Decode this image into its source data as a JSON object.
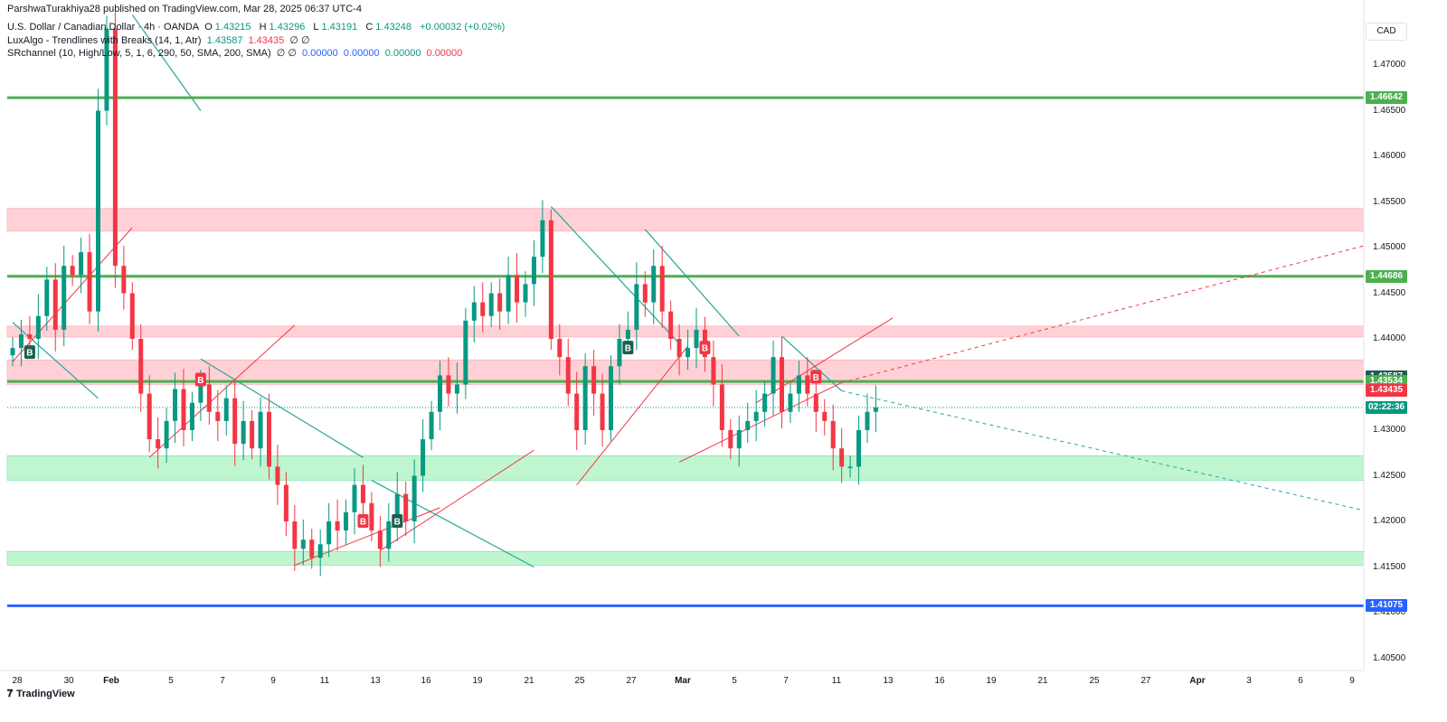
{
  "publisher": "ParshwaTurakhiya28 published on TradingView.com, Mar 28, 2025 06:37 UTC-4",
  "legend": {
    "symbol": "U.S. Dollar / Canadian Dollar · 4h · OANDA",
    "open_label": "O",
    "open": "1.43215",
    "high_label": "H",
    "high": "1.43296",
    "low_label": "L",
    "low": "1.43191",
    "close_label": "C",
    "close": "1.43248",
    "change": "+0.00032 (+0.02%)",
    "indicator1_name": "LuxAlgo - Trendlines with Breaks (14, 1, Atr)",
    "indicator1_v1": "1.43587",
    "indicator1_v2": "1.43435",
    "indicator1_rest": "∅  ∅",
    "indicator2_name": "SRchannel (10, High/Low, 5, 1, 6, 290, 50, SMA, 200, SMA)",
    "indicator2_na": "∅  ∅",
    "indicator2_v1": "0.00000",
    "indicator2_v2": "0.00000",
    "indicator2_v3": "0.00000",
    "indicator2_v4": "0.00000"
  },
  "currency": "CAD",
  "brand": "TradingView",
  "brand_icon": "tradingview-logo-icon",
  "colors": {
    "up": "#089981",
    "down": "#f23645",
    "level": "#4caf50",
    "support_line": "#2962ff",
    "resistance_zone": "#ffcdd2",
    "support_zone": "#b9f6ca",
    "trend_down": "#26a69a",
    "trend_up": "#f23645"
  },
  "chart_data": {
    "type": "candlestick",
    "y_ticks": [
      "1.47000",
      "1.46500",
      "1.46000",
      "1.45500",
      "1.45000",
      "1.44500",
      "1.44000",
      "1.43500",
      "1.43000",
      "1.42500",
      "1.42000",
      "1.41500",
      "1.41000",
      "1.40500"
    ],
    "x_ticks": [
      "28",
      "30",
      "Feb",
      "5",
      "7",
      "9",
      "11",
      "13",
      "16",
      "19",
      "21",
      "25",
      "27",
      "Mar",
      "5",
      "7",
      "11",
      "13",
      "16",
      "19",
      "21",
      "25",
      "27",
      "Apr",
      "3",
      "6",
      "9"
    ],
    "price_tags": [
      {
        "label": "1.46642",
        "value": 1.46642,
        "color": "#4caf50"
      },
      {
        "label": "1.44686",
        "value": 1.44686,
        "color": "#4caf50"
      },
      {
        "label": "1.43587",
        "value": 1.43587,
        "color": "#1b5e4f"
      },
      {
        "label": "1.43534",
        "value": 1.43534,
        "color": "#4caf50"
      },
      {
        "label": "1.43435",
        "value": 1.43435,
        "color": "#f23645"
      },
      {
        "label": "02:22:36",
        "value": 1.43248,
        "color": "#089981"
      },
      {
        "label": "1.41075",
        "value": 1.41075,
        "color": "#2962ff"
      }
    ],
    "levels": [
      1.46642,
      1.44686,
      1.43534
    ],
    "support_line": 1.41075,
    "last_price": 1.43248,
    "zones": [
      {
        "kind": "resistance",
        "from": 1.4518,
        "to": 1.4543
      },
      {
        "kind": "resistance",
        "from": 1.4402,
        "to": 1.4414
      },
      {
        "kind": "resistance",
        "from": 1.435,
        "to": 1.4377
      },
      {
        "kind": "support",
        "from": 1.4245,
        "to": 1.4272
      },
      {
        "kind": "support",
        "from": 1.4152,
        "to": 1.4167
      }
    ],
    "trend_down": [
      [
        1.4418,
        1.4335,
        0,
        10
      ],
      [
        1.4755,
        1.465,
        14,
        22
      ],
      [
        1.4378,
        1.427,
        22,
        41
      ],
      [
        1.4245,
        1.415,
        42,
        61
      ],
      [
        1.4545,
        1.4395,
        63,
        78
      ],
      [
        1.452,
        1.4403,
        74,
        85
      ],
      [
        1.4403,
        1.4343,
        90,
        97
      ]
    ],
    "trend_up": [
      [
        1.4375,
        1.4522,
        0,
        14
      ],
      [
        1.427,
        1.4415,
        16,
        33
      ],
      [
        1.4152,
        1.4215,
        33,
        50
      ],
      [
        1.4168,
        1.4278,
        43,
        61
      ],
      [
        1.424,
        1.4392,
        66,
        79
      ],
      [
        1.4265,
        1.4352,
        78,
        97
      ],
      [
        1.433,
        1.4423,
        87,
        103
      ]
    ],
    "dashed_up": [
      1.4352,
      1.4502,
      97,
      117
    ],
    "dashed_down": [
      1.4343,
      1.4212,
      97,
      117
    ],
    "break_labels": [
      {
        "text": "B",
        "kind": "bull",
        "i": 2,
        "price": 1.4385
      },
      {
        "text": "B",
        "kind": "bear",
        "i": 22,
        "price": 1.4355
      },
      {
        "text": "B",
        "kind": "bear",
        "i": 41,
        "price": 1.42
      },
      {
        "text": "B",
        "kind": "bull",
        "i": 45,
        "price": 1.42
      },
      {
        "text": "B",
        "kind": "bull",
        "i": 72,
        "price": 1.439
      },
      {
        "text": "B",
        "kind": "bear",
        "i": 81,
        "price": 1.439
      },
      {
        "text": "B",
        "kind": "bear",
        "i": 94,
        "price": 1.4358
      }
    ],
    "closes": [
      1.439,
      1.4405,
      1.44,
      1.4425,
      1.4465,
      1.441,
      1.448,
      1.447,
      1.4495,
      1.443,
      1.465,
      1.474,
      1.448,
      1.445,
      1.44,
      1.434,
      1.429,
      1.428,
      1.431,
      1.4345,
      1.43,
      1.433,
      1.435,
      1.432,
      1.431,
      1.4335,
      1.4285,
      1.431,
      1.428,
      1.432,
      1.426,
      1.424,
      1.42,
      1.417,
      1.418,
      1.416,
      1.4175,
      1.42,
      1.419,
      1.421,
      1.424,
      1.422,
      1.419,
      1.417,
      1.42,
      1.423,
      1.42,
      1.425,
      1.429,
      1.432,
      1.436,
      1.434,
      1.435,
      1.442,
      1.444,
      1.4425,
      1.445,
      1.443,
      1.447,
      1.444,
      1.446,
      1.449,
      1.453,
      1.44,
      1.438,
      1.434,
      1.43,
      1.437,
      1.434,
      1.43,
      1.437,
      1.44,
      1.441,
      1.446,
      1.444,
      1.448,
      1.443,
      1.44,
      1.438,
      1.439,
      1.441,
      1.438,
      1.435,
      1.43,
      1.428,
      1.43,
      1.431,
      1.432,
      1.434,
      1.438,
      1.432,
      1.434,
      1.436,
      1.434,
      1.432,
      1.431,
      1.428,
      1.426,
      1.426,
      1.43,
      1.432,
      1.4325
    ]
  }
}
